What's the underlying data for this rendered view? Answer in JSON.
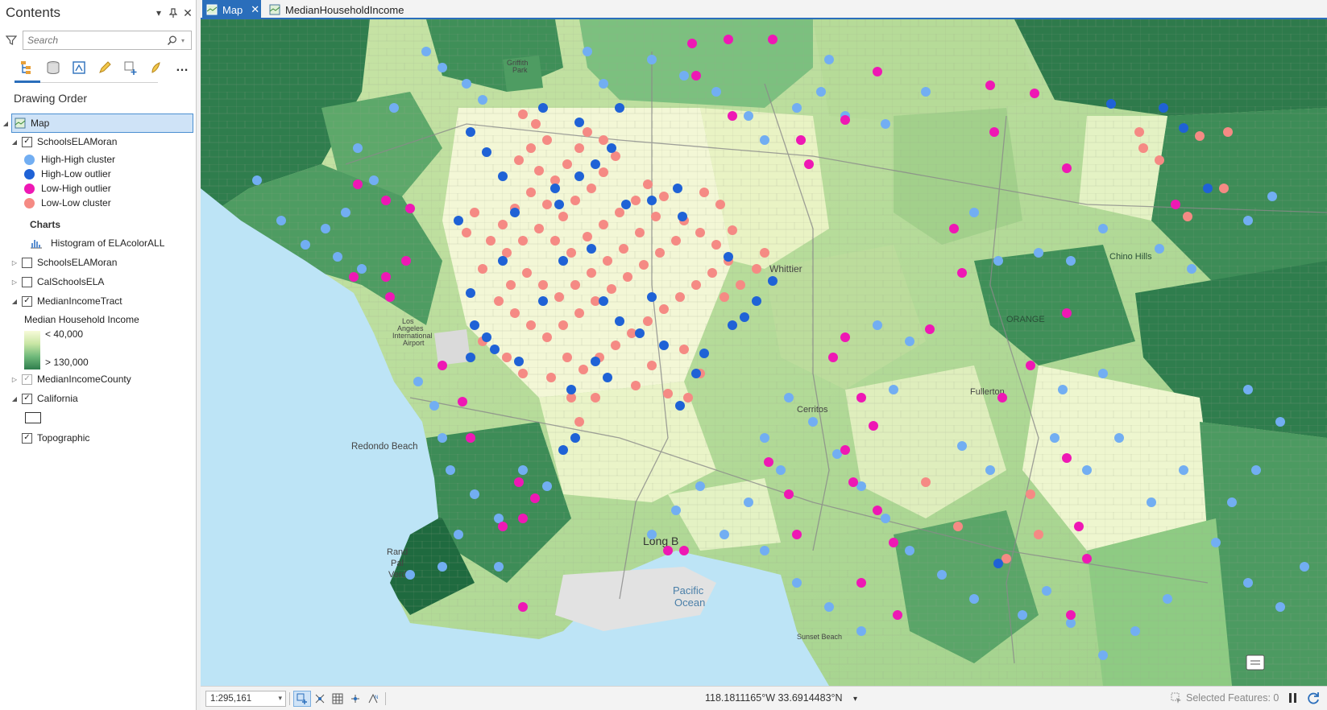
{
  "contents": {
    "title": "Contents",
    "search_placeholder": "Search",
    "drawing_order_label": "Drawing Order",
    "layers": {
      "map": "Map",
      "schools_moran": "SchoolsELAMoran",
      "legend": [
        {
          "label": "High-High cluster",
          "color": "#72aef2"
        },
        {
          "label": "High-Low outlier",
          "color": "#1f62d6"
        },
        {
          "label": "Low-High outlier",
          "color": "#ee18b4"
        },
        {
          "label": "Low-Low cluster",
          "color": "#f58a84"
        }
      ],
      "charts_label": "Charts",
      "chart_item": "Histogram of ELAcolorALL",
      "schools_moran_2": "SchoolsELAMoran",
      "cal_schools": "CalSchoolsELA",
      "median_tract": "MedianIncomeTract",
      "median_legend_title": "Median Household Income",
      "median_low": "< 40,000",
      "median_high": "> 130,000",
      "median_county": "MedianIncomeCounty",
      "california": "California",
      "topographic": "Topographic"
    }
  },
  "tabs": [
    {
      "label": "Map",
      "active": true
    },
    {
      "label": "MedianHouseholdIncome",
      "active": false
    }
  ],
  "map": {
    "labels": {
      "redondo": "Redondo Beach",
      "pacific1": "Pacific",
      "pacific2": "Ocean",
      "long_beach": "Long B",
      "rpv1": "Rand",
      "rpv2": "Pal",
      "rpv3": "Verde",
      "airport1": "Los",
      "airport2": "Angeles",
      "airport3": "International",
      "airport4": "Airport",
      "griffith1": "Griffith",
      "griffith2": "Park",
      "whittier": "Whittier",
      "orange": "ORANGE",
      "chino_hills": "Chino Hills",
      "fullerton": "Fullerton",
      "cerritos": "Cerritos",
      "sunset_beach": "Sunset Beach"
    },
    "colors": {
      "ocean": "#bde4f6",
      "income_low": "#f4f8d8",
      "income_mid": "#a9d493",
      "income_high": "#2f7d4d"
    }
  },
  "status": {
    "scale": "1:295,161",
    "coords": "118.1811165°W 33.6914483°N",
    "selected": "Selected Features: 0"
  }
}
